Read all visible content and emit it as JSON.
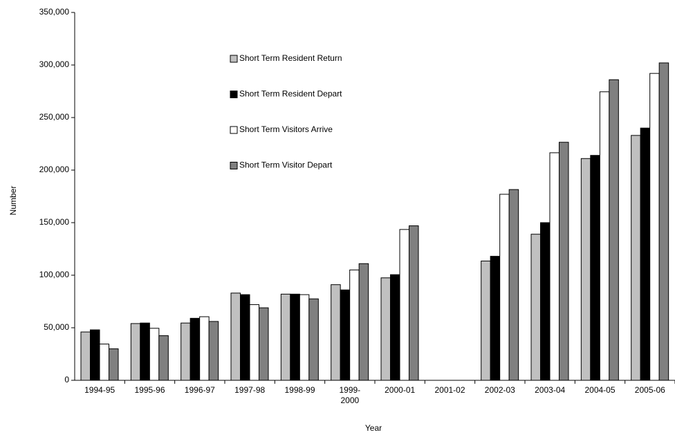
{
  "chart_data": {
    "type": "bar",
    "xlabel": "Year",
    "ylabel": "Number",
    "categories": [
      "1994-95",
      "1995-96",
      "1996-97",
      "1997-98",
      "1998-99",
      "1999-2000",
      "2000-01",
      "2001-02",
      "2002-03",
      "2003-04",
      "2004-05",
      "2005-06"
    ],
    "series": [
      {
        "name": "Short Term Resident Return",
        "color": "#c0c0c0",
        "values": [
          46000,
          54000,
          54500,
          83000,
          82000,
          91000,
          97500,
          null,
          113500,
          139000,
          211000,
          233000
        ]
      },
      {
        "name": "Short Term Resident Depart",
        "color": "#000000",
        "values": [
          48000,
          54500,
          59000,
          81500,
          82000,
          86000,
          100500,
          null,
          118000,
          150000,
          214000,
          240000
        ]
      },
      {
        "name": "Short Term Visitors Arrive",
        "color": "#ffffff",
        "values": [
          34500,
          49500,
          60500,
          72000,
          81500,
          105000,
          143500,
          null,
          177000,
          216500,
          274500,
          292000
        ]
      },
      {
        "name": "Short Term Visitor Depart",
        "color": "#808080",
        "values": [
          30000,
          42500,
          56000,
          69000,
          77500,
          111000,
          147000,
          null,
          181500,
          226500,
          286000,
          302000
        ]
      }
    ],
    "ylim": [
      0,
      350000
    ],
    "yticks": [
      0,
      {
        "value": 50000,
        "label": "50,000"
      },
      {
        "value": 100000,
        "label": "100,000"
      },
      {
        "value": 150000,
        "label": "150,000"
      },
      {
        "value": 200000,
        "label": "200,000"
      },
      {
        "value": 250000,
        "label": "250,000"
      },
      {
        "value": 300000,
        "label": "300,000"
      },
      {
        "value": 350000,
        "label": "350,000"
      }
    ],
    "grid": false
  }
}
